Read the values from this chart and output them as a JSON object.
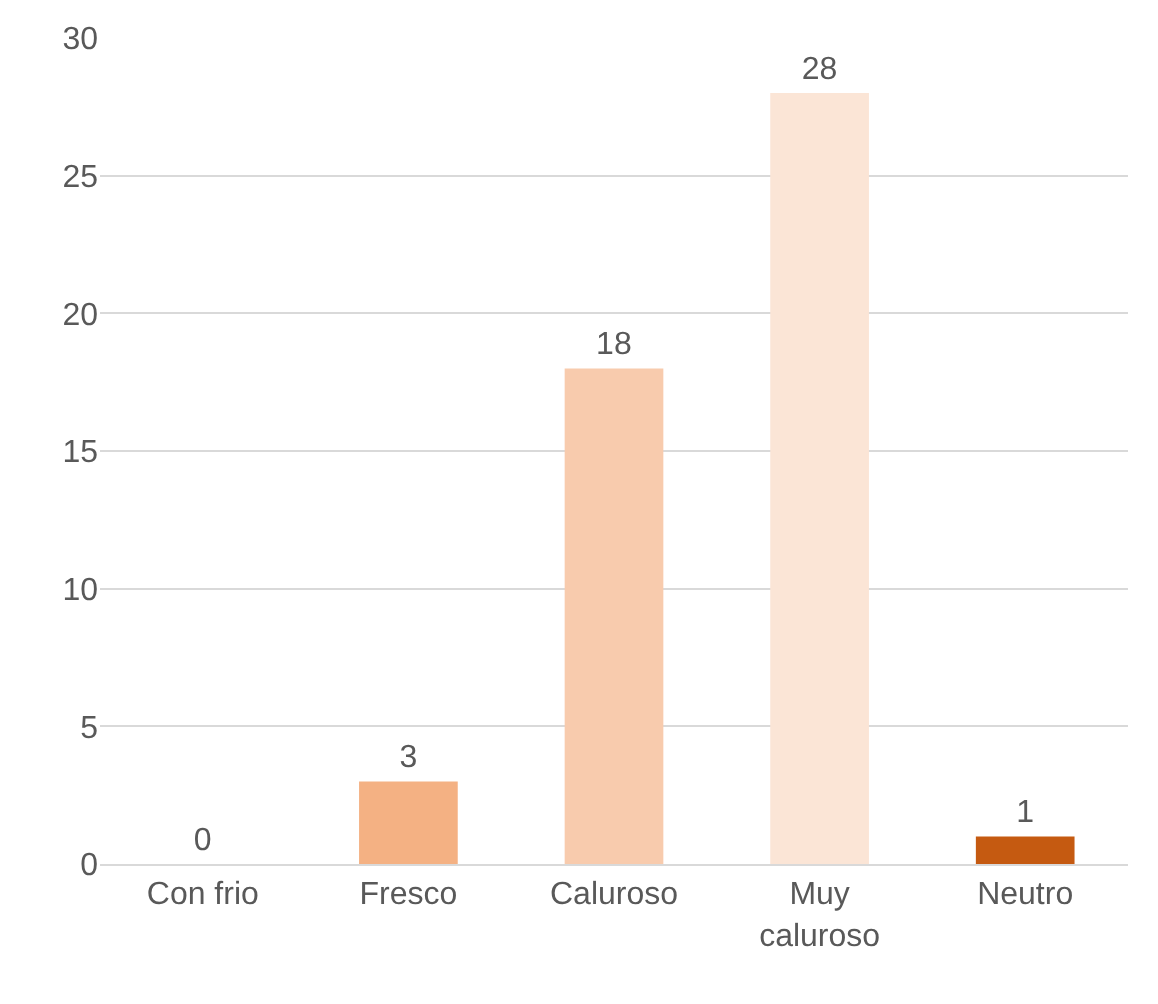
{
  "chart_data": {
    "type": "bar",
    "categories": [
      "Con frio",
      "Fresco",
      "Caluroso",
      "Muy caluroso",
      "Neutro"
    ],
    "values": [
      0,
      3,
      18,
      28,
      1
    ],
    "colors": [
      "#fbe5d6",
      "#f4b183",
      "#f8cbad",
      "#fbe5d6",
      "#c55a11"
    ],
    "ylim": [
      0,
      30
    ],
    "yticks": [
      0,
      5,
      10,
      15,
      20,
      25,
      30
    ],
    "grid": "y",
    "data_labels": true
  }
}
